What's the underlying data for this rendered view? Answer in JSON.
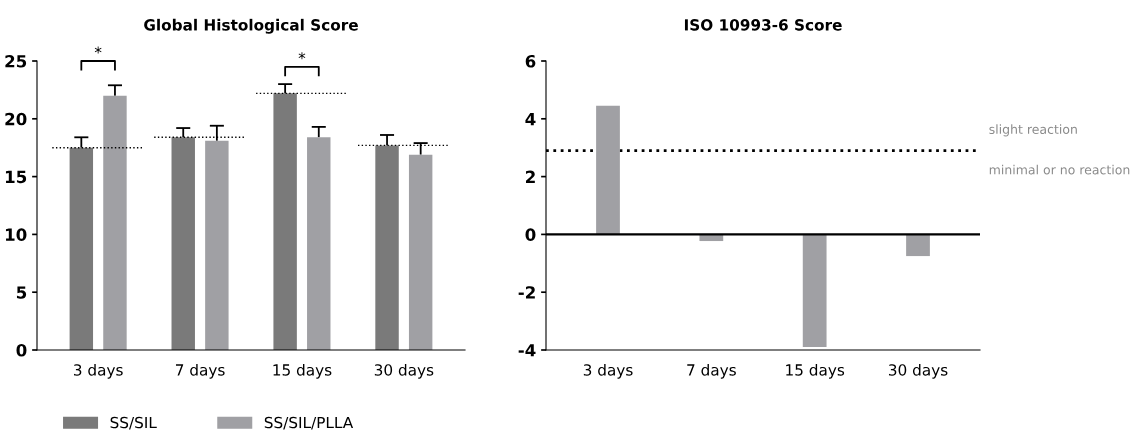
{
  "chart_data": [
    {
      "type": "bar",
      "title": "Global Histological Score",
      "categories": [
        "3 days",
        "7 days",
        "15 days",
        "30 days"
      ],
      "series": [
        {
          "name": "SS/SIL",
          "color": "#7a7a7a",
          "values": [
            17.5,
            18.4,
            22.2,
            17.7
          ],
          "errors": [
            [
              17.5,
              18.4
            ],
            [
              18.4,
              19.2
            ],
            [
              22.2,
              23.0
            ],
            [
              17.7,
              18.6
            ]
          ]
        },
        {
          "name": "SS/SIL/PLLA",
          "color": "#a0a0a4",
          "values": [
            22.0,
            18.1,
            18.4,
            16.9
          ],
          "errors": [
            [
              22.0,
              22.9
            ],
            [
              18.1,
              19.4
            ],
            [
              18.4,
              19.3
            ],
            [
              16.9,
              17.9
            ]
          ]
        }
      ],
      "ylim": [
        0,
        25
      ],
      "yticks": [
        0,
        5,
        10,
        15,
        20,
        25
      ],
      "ref_lines": [
        {
          "axis": "y",
          "value": 17.5,
          "line_style": "dotted"
        },
        {
          "axis": "y",
          "value": 18.4,
          "line_style": "dotted"
        },
        {
          "axis": "y",
          "value": 22.2,
          "line_style": "dotted"
        },
        {
          "axis": "y",
          "value": 17.7,
          "line_style": "dotted"
        }
      ],
      "annotations": [
        "*",
        "*"
      ],
      "legend": "bottom"
    },
    {
      "type": "bar",
      "title": "ISO 10993-6 Score",
      "categories": [
        "3 days",
        "7 days",
        "15 days",
        "30 days"
      ],
      "series": [
        {
          "color": "#a0a0a4",
          "values": [
            4.45,
            -0.23,
            -3.9,
            -0.75
          ]
        }
      ],
      "ylim": [
        -4,
        6
      ],
      "yticks": [
        -4,
        -2,
        0,
        2,
        4,
        6
      ],
      "ref_lines": [
        {
          "axis": "y",
          "value": 2.9,
          "line_style": "dotted",
          "color": "#000000"
        }
      ],
      "annotations": [
        "slight reaction",
        "minimal or no reaction"
      ]
    }
  ]
}
